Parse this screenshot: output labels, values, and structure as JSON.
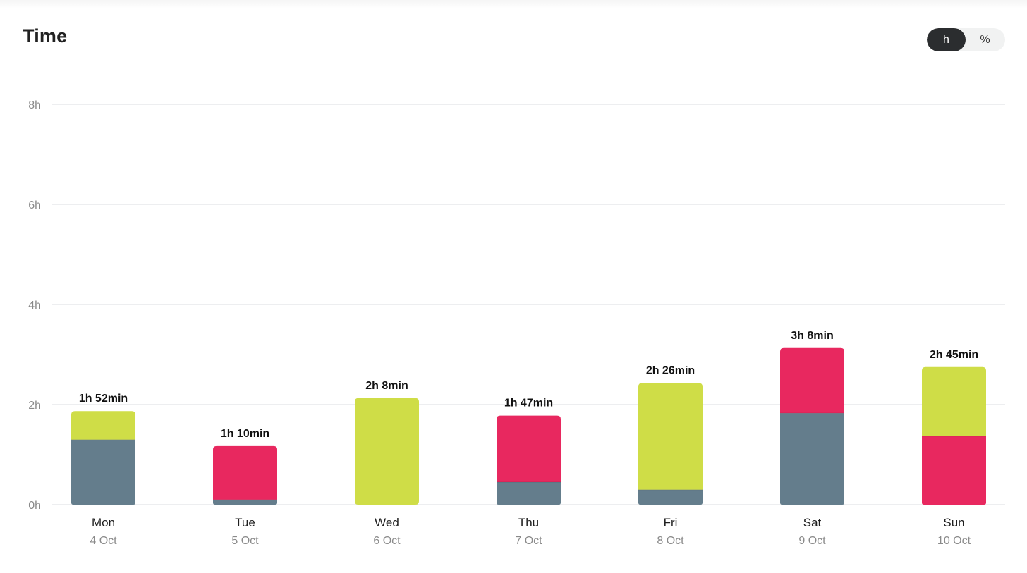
{
  "header": {
    "title": "Time"
  },
  "unit_toggle": {
    "options": [
      {
        "label": "h",
        "active": true
      },
      {
        "label": "%",
        "active": false
      }
    ]
  },
  "chart_data": {
    "type": "bar",
    "stacked": true,
    "title": "Time",
    "xlabel": "",
    "ylabel": "",
    "ylim": [
      0,
      8
    ],
    "y_ticks": [
      0,
      2,
      4,
      6,
      8
    ],
    "y_tick_labels": [
      "0h",
      "2h",
      "4h",
      "6h",
      "8h"
    ],
    "grid": true,
    "categories": [
      "Mon",
      "Tue",
      "Wed",
      "Thu",
      "Fri",
      "Sat",
      "Sun"
    ],
    "dates": [
      "4 Oct",
      "5 Oct",
      "6 Oct",
      "7 Oct",
      "8 Oct",
      "9 Oct",
      "10 Oct"
    ],
    "totals": [
      "1h 52min",
      "1h 10min",
      "2h 8min",
      "1h 47min",
      "2h 26min",
      "3h 8min",
      "2h 45min"
    ],
    "series": [
      {
        "color": "#647d8c",
        "values": [
          1.3,
          0.1,
          0,
          0.45,
          0.3,
          1.83,
          0
        ]
      },
      {
        "color": "#e8285f",
        "values": [
          0,
          1.07,
          0,
          1.33,
          0,
          1.3,
          1.37
        ]
      },
      {
        "color": "#cfdd47",
        "values": [
          0.57,
          0,
          2.13,
          0,
          2.13,
          0,
          1.38
        ]
      }
    ]
  }
}
